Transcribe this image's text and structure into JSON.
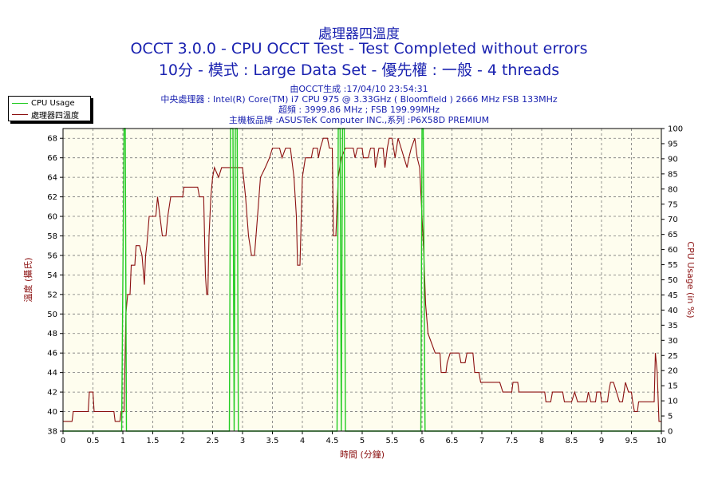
{
  "header": {
    "title_line1": "處理器四溫度",
    "title_line2": "OCCT 3.0.0 - CPU OCCT Test - Test Completed without errors",
    "title_line3": "10分 - 模式 : Large Data Set - 優先權 : 一般 - 4 threads",
    "info_line1": "由OCCT生成 :17/04/10 23:54:31",
    "info_line2": "中央處理器 : Intel(R) Core(TM) i7 CPU 975 @ 3.33GHz ( Bloomfield ) 2666 MHz FSB 133MHz",
    "info_line3": "超頻 : 3999.86 MHz ; FSB 199.99MHz",
    "info_line4": "主機板品牌 :ASUSTeK Computer INC.,系列 :P6X58D PREMIUM"
  },
  "legend": {
    "cpu_usage": "CPU Usage",
    "temperature": "處理器四溫度"
  },
  "chart_data": {
    "type": "line",
    "xlabel": "時間 (分鐘)",
    "ylabel_left": "溫度 (攝氏)",
    "ylabel_right": "CPU Usage (in %)",
    "xlim": [
      0,
      10
    ],
    "ylim_left": [
      38,
      69
    ],
    "ylim_right": [
      0,
      100
    ],
    "x_ticks": [
      "0",
      "0.5",
      "1",
      "1.5",
      "2",
      "2.5",
      "3",
      "3.5",
      "4",
      "4.5",
      "5",
      "5.5",
      "6",
      "6.5",
      "7",
      "7.5",
      "8",
      "8.5",
      "9",
      "9.5",
      "10"
    ],
    "y_left_ticks": [
      "38",
      "40",
      "42",
      "44",
      "46",
      "48",
      "50",
      "52",
      "54",
      "56",
      "58",
      "60",
      "62",
      "64",
      "66",
      "68"
    ],
    "y_right_ticks": [
      "0",
      "5",
      "10",
      "15",
      "20",
      "25",
      "30",
      "35",
      "40",
      "45",
      "50",
      "55",
      "60",
      "65",
      "70",
      "75",
      "80",
      "85",
      "90",
      "95",
      "100"
    ],
    "grid": true,
    "colors": {
      "temperature": "#8b1010",
      "cpu_usage": "#22cc22",
      "plot_bg": "#fefdee",
      "axis_text": "#000000",
      "title": "#1a22b0"
    },
    "series": [
      {
        "name": "處理器四溫度",
        "axis": "left",
        "points": [
          [
            0,
            39
          ],
          [
            0.15,
            39
          ],
          [
            0.17,
            40
          ],
          [
            0.42,
            40
          ],
          [
            0.44,
            42
          ],
          [
            0.5,
            42
          ],
          [
            0.52,
            40
          ],
          [
            0.85,
            40
          ],
          [
            0.87,
            39
          ],
          [
            0.95,
            39
          ],
          [
            0.97,
            40
          ],
          [
            1.02,
            40
          ],
          [
            1.05,
            50
          ],
          [
            1.08,
            52
          ],
          [
            1.12,
            52
          ],
          [
            1.14,
            55
          ],
          [
            1.2,
            55
          ],
          [
            1.22,
            57
          ],
          [
            1.28,
            57
          ],
          [
            1.32,
            56
          ],
          [
            1.36,
            53
          ],
          [
            1.38,
            56
          ],
          [
            1.4,
            57
          ],
          [
            1.44,
            60
          ],
          [
            1.55,
            60
          ],
          [
            1.58,
            62
          ],
          [
            1.62,
            60
          ],
          [
            1.66,
            58
          ],
          [
            1.72,
            58
          ],
          [
            1.75,
            60
          ],
          [
            1.8,
            62
          ],
          [
            2.0,
            62
          ],
          [
            2.02,
            63
          ],
          [
            2.25,
            63
          ],
          [
            2.28,
            62
          ],
          [
            2.35,
            62
          ],
          [
            2.38,
            54
          ],
          [
            2.4,
            52
          ],
          [
            2.42,
            52
          ],
          [
            2.44,
            58
          ],
          [
            2.47,
            62
          ],
          [
            2.5,
            64
          ],
          [
            2.53,
            65
          ],
          [
            2.6,
            64
          ],
          [
            2.65,
            65
          ],
          [
            3.0,
            65
          ],
          [
            3.05,
            62
          ],
          [
            3.1,
            58
          ],
          [
            3.15,
            56
          ],
          [
            3.2,
            56
          ],
          [
            3.25,
            60
          ],
          [
            3.3,
            64
          ],
          [
            3.38,
            65
          ],
          [
            3.45,
            66
          ],
          [
            3.5,
            67
          ],
          [
            3.62,
            67
          ],
          [
            3.66,
            66
          ],
          [
            3.72,
            67
          ],
          [
            3.8,
            67
          ],
          [
            3.86,
            64
          ],
          [
            3.9,
            60
          ],
          [
            3.92,
            55
          ],
          [
            3.96,
            55
          ],
          [
            4.0,
            64
          ],
          [
            4.05,
            66
          ],
          [
            4.15,
            66
          ],
          [
            4.18,
            67
          ],
          [
            4.25,
            67
          ],
          [
            4.27,
            66
          ],
          [
            4.3,
            67
          ],
          [
            4.35,
            68
          ],
          [
            4.42,
            68
          ],
          [
            4.45,
            67
          ],
          [
            4.5,
            67
          ],
          [
            4.52,
            58
          ],
          [
            4.56,
            58
          ],
          [
            4.6,
            64
          ],
          [
            4.65,
            66
          ],
          [
            4.72,
            67
          ],
          [
            4.85,
            67
          ],
          [
            4.88,
            66
          ],
          [
            4.92,
            67
          ],
          [
            5.0,
            67
          ],
          [
            5.02,
            66
          ],
          [
            5.1,
            66
          ],
          [
            5.14,
            67
          ],
          [
            5.2,
            67
          ],
          [
            5.22,
            65
          ],
          [
            5.28,
            67
          ],
          [
            5.35,
            67
          ],
          [
            5.38,
            65
          ],
          [
            5.42,
            67
          ],
          [
            5.45,
            68
          ],
          [
            5.5,
            68
          ],
          [
            5.55,
            66
          ],
          [
            5.6,
            68
          ],
          [
            5.65,
            67
          ],
          [
            5.7,
            66
          ],
          [
            5.75,
            65
          ],
          [
            5.78,
            66
          ],
          [
            5.82,
            67
          ],
          [
            5.88,
            68
          ],
          [
            5.92,
            66
          ],
          [
            5.96,
            65
          ],
          [
            6.0,
            60
          ],
          [
            6.03,
            56
          ],
          [
            6.06,
            51
          ],
          [
            6.1,
            48
          ],
          [
            6.16,
            47
          ],
          [
            6.22,
            46
          ],
          [
            6.3,
            46
          ],
          [
            6.32,
            44
          ],
          [
            6.4,
            44
          ],
          [
            6.42,
            45
          ],
          [
            6.47,
            46
          ],
          [
            6.62,
            46
          ],
          [
            6.65,
            45
          ],
          [
            6.72,
            45
          ],
          [
            6.75,
            46
          ],
          [
            6.85,
            46
          ],
          [
            6.88,
            44
          ],
          [
            6.95,
            44
          ],
          [
            6.98,
            43
          ],
          [
            7.3,
            43
          ],
          [
            7.35,
            42
          ],
          [
            7.5,
            42
          ],
          [
            7.52,
            43
          ],
          [
            7.6,
            43
          ],
          [
            7.62,
            42
          ],
          [
            8.05,
            42
          ],
          [
            8.07,
            41
          ],
          [
            8.15,
            41
          ],
          [
            8.18,
            42
          ],
          [
            8.35,
            42
          ],
          [
            8.38,
            41
          ],
          [
            8.5,
            41
          ],
          [
            8.55,
            42
          ],
          [
            8.6,
            41
          ],
          [
            8.75,
            41
          ],
          [
            8.78,
            42
          ],
          [
            8.82,
            41
          ],
          [
            8.9,
            41
          ],
          [
            8.92,
            42
          ],
          [
            8.98,
            42
          ],
          [
            9.0,
            41
          ],
          [
            9.1,
            41
          ],
          [
            9.12,
            42
          ],
          [
            9.15,
            43
          ],
          [
            9.2,
            43
          ],
          [
            9.25,
            42
          ],
          [
            9.3,
            41
          ],
          [
            9.35,
            41
          ],
          [
            9.4,
            43
          ],
          [
            9.45,
            42
          ],
          [
            9.5,
            42
          ],
          [
            9.52,
            41
          ],
          [
            9.55,
            40
          ],
          [
            9.6,
            40
          ],
          [
            9.62,
            41
          ],
          [
            9.88,
            41
          ],
          [
            9.9,
            46
          ],
          [
            9.93,
            44
          ],
          [
            9.96,
            39
          ],
          [
            10.0,
            39
          ]
        ]
      },
      {
        "name": "CPU Usage",
        "axis": "right",
        "points": [
          [
            0,
            0
          ],
          [
            0.98,
            0
          ],
          [
            1.02,
            100
          ],
          [
            1.04,
            100
          ],
          [
            1.06,
            0
          ],
          [
            2.78,
            0
          ],
          [
            2.8,
            100
          ],
          [
            2.84,
            100
          ],
          [
            2.86,
            0
          ],
          [
            2.88,
            100
          ],
          [
            2.91,
            100
          ],
          [
            2.93,
            0
          ],
          [
            4.58,
            0
          ],
          [
            4.6,
            100
          ],
          [
            4.63,
            100
          ],
          [
            4.65,
            0
          ],
          [
            4.67,
            100
          ],
          [
            4.7,
            100
          ],
          [
            4.72,
            0
          ],
          [
            5.98,
            0
          ],
          [
            6.0,
            100
          ],
          [
            6.02,
            100
          ],
          [
            6.05,
            0
          ],
          [
            10.0,
            0
          ]
        ]
      }
    ]
  }
}
